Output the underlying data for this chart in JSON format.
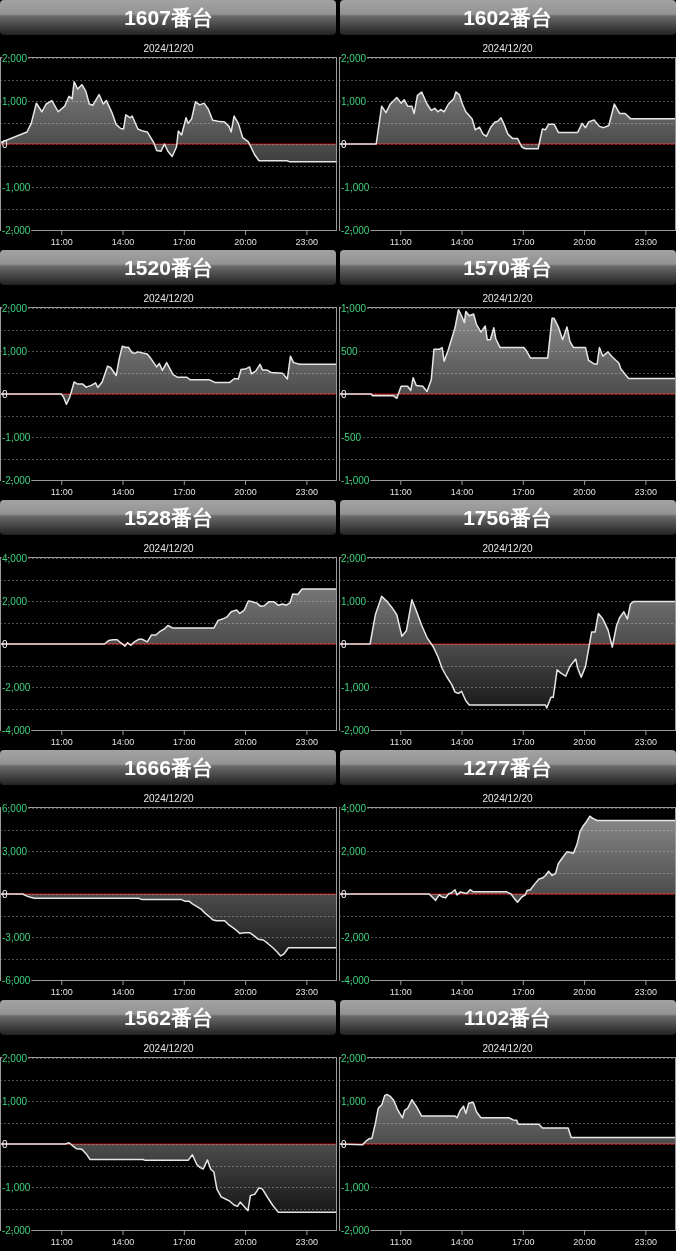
{
  "chart_data": [
    {
      "type": "area",
      "title": "1607番台",
      "subtitle": "2024/12/20",
      "color": "#e6e6e6",
      "xlim": [
        8,
        24.5
      ],
      "xticks": [
        {
          "value": 11,
          "label": "11:00"
        },
        {
          "value": 14,
          "label": "14:00"
        },
        {
          "value": 17,
          "label": "17:00"
        },
        {
          "value": 20,
          "label": "20:00"
        },
        {
          "value": 23,
          "label": "23:00"
        }
      ],
      "ylim": [
        -2000,
        2000
      ],
      "yticks": [
        {
          "value": -2000,
          "label": "-2,000"
        },
        {
          "value": -1500,
          "label": null
        },
        {
          "value": -1000,
          "label": "-1,000"
        },
        {
          "value": -500,
          "label": null
        },
        0,
        {
          "value": 500,
          "label": null
        },
        {
          "value": 1000,
          "label": "1,000"
        },
        {
          "value": 1500,
          "label": null
        },
        {
          "value": 2000,
          "label": "2,000"
        }
      ],
      "grid": "y",
      "ref_lines": [
        {
          "axis": "y",
          "value": 0,
          "color": "#cc0000"
        }
      ],
      "x": [
        8,
        9.32,
        9.53,
        9.78,
        10.05,
        10.26,
        10.54,
        10.85,
        11.17,
        11.38,
        11.53,
        11.63,
        11.8,
        12.01,
        12.2,
        12.37,
        12.54,
        12.85,
        13.06,
        13.21,
        13.48,
        13.69,
        13.91,
        14.05,
        14.16,
        14.37,
        14.47,
        14.75,
        15,
        15.21,
        15.53,
        15.67,
        15.88,
        16.05,
        16.22,
        16.43,
        16.64,
        16.73,
        16.89,
        17.11,
        17.21,
        17.38,
        17.57,
        17.78,
        17.99,
        18.2,
        18.41,
        18.68,
        19,
        19.21,
        19.32,
        19.46,
        19.67,
        19.88,
        20.16,
        20.47,
        20.68,
        22.05,
        22.16,
        24.5
      ],
      "values": [
        30,
        280,
        480,
        950,
        750,
        930,
        1010,
        750,
        880,
        1110,
        1050,
        1450,
        1280,
        1380,
        1230,
        930,
        900,
        1150,
        930,
        1010,
        730,
        450,
        360,
        350,
        680,
        610,
        650,
        350,
        300,
        280,
        30,
        -150,
        -170,
        0,
        -170,
        -290,
        -70,
        300,
        210,
        610,
        480,
        580,
        980,
        910,
        950,
        810,
        550,
        530,
        510,
        410,
        280,
        650,
        480,
        150,
        50,
        -250,
        -390,
        -390,
        -410,
        -410
      ]
    },
    {
      "type": "area",
      "title": "1602番台",
      "subtitle": "2024/12/20",
      "color": "#e6e6e6",
      "xlim": [
        8,
        24.5
      ],
      "xticks": [
        {
          "value": 11,
          "label": "11:00"
        },
        {
          "value": 14,
          "label": "14:00"
        },
        {
          "value": 17,
          "label": "17:00"
        },
        {
          "value": 20,
          "label": "20:00"
        },
        {
          "value": 23,
          "label": "23:00"
        }
      ],
      "ylim": [
        -2000,
        2000
      ],
      "yticks": [
        {
          "value": -2000,
          "label": "-2,000"
        },
        {
          "value": -1500,
          "label": null
        },
        {
          "value": -1000,
          "label": "-1,000"
        },
        {
          "value": -500,
          "label": null
        },
        0,
        {
          "value": 500,
          "label": null
        },
        {
          "value": 1000,
          "label": "1,000"
        },
        {
          "value": 1500,
          "label": null
        },
        {
          "value": 2000,
          "label": "2,000"
        }
      ],
      "grid": "y",
      "ref_lines": [
        {
          "axis": "y",
          "value": 0,
          "color": "#cc0000"
        }
      ],
      "x": [
        8,
        9.82,
        10.09,
        10.3,
        10.51,
        10.83,
        11.04,
        11.19,
        11.36,
        11.57,
        11.68,
        11.84,
        12.05,
        12.31,
        12.52,
        12.69,
        12.84,
        12.98,
        13.15,
        13.36,
        13.53,
        13.62,
        13.72,
        13.89,
        14.04,
        14.21,
        14.52,
        14.67,
        14.88,
        15.05,
        15.22,
        15.43,
        15.64,
        15.78,
        15.93,
        16.06,
        16.27,
        16.49,
        16.74,
        16.95,
        17.12,
        17.75,
        17.96,
        18.11,
        18.26,
        18.53,
        18.74,
        19.69,
        19.9,
        20.07,
        20.22,
        20.49,
        20.75,
        20.96,
        21.21,
        21.48,
        21.74,
        22.01,
        22.27,
        24.5
      ],
      "values": [
        0,
        0,
        880,
        730,
        930,
        1080,
        950,
        1030,
        880,
        880,
        710,
        1130,
        1210,
        930,
        780,
        830,
        750,
        800,
        750,
        930,
        1010,
        1050,
        1210,
        1150,
        930,
        750,
        580,
        330,
        390,
        230,
        180,
        390,
        510,
        530,
        610,
        480,
        230,
        130,
        130,
        -70,
        -110,
        -110,
        350,
        330,
        460,
        460,
        270,
        270,
        480,
        380,
        510,
        560,
        410,
        380,
        430,
        930,
        710,
        710,
        590,
        590
      ]
    },
    {
      "type": "area",
      "title": "1520番台",
      "subtitle": "2024/12/20",
      "color": "#e6e6e6",
      "xlim": [
        8,
        24.5
      ],
      "xticks": [
        {
          "value": 11,
          "label": "11:00"
        },
        {
          "value": 14,
          "label": "14:00"
        },
        {
          "value": 17,
          "label": "17:00"
        },
        {
          "value": 20,
          "label": "20:00"
        },
        {
          "value": 23,
          "label": "23:00"
        }
      ],
      "ylim": [
        -2000,
        2000
      ],
      "yticks": [
        {
          "value": -2000,
          "label": "-2,000"
        },
        {
          "value": -1500,
          "label": null
        },
        {
          "value": -1000,
          "label": "-1,000"
        },
        {
          "value": -500,
          "label": null
        },
        0,
        {
          "value": 500,
          "label": null
        },
        {
          "value": 1000,
          "label": "1,000"
        },
        {
          "value": 1500,
          "label": null
        },
        {
          "value": 2000,
          "label": "2,000"
        }
      ],
      "grid": "y",
      "ref_lines": [
        {
          "axis": "y",
          "value": 0,
          "color": "#cc0000"
        }
      ],
      "x": [
        8,
        11,
        11.11,
        11.25,
        11.42,
        11.63,
        11.8,
        12.05,
        12.22,
        12.47,
        12.68,
        12.79,
        13,
        13.27,
        13.42,
        13.69,
        13.84,
        13.99,
        14.16,
        14.28,
        14.47,
        14.62,
        14.75,
        15.21,
        15.38,
        15.67,
        15.8,
        15.95,
        16.16,
        16.47,
        16.68,
        17.15,
        17.32,
        18.26,
        18.52,
        19.25,
        19.48,
        19.67,
        19.8,
        20.01,
        20.22,
        20.31,
        20.52,
        20.73,
        20.85,
        21.06,
        21.27,
        21.84,
        22.07,
        22.22,
        22.37,
        22.68,
        24.5
      ],
      "values": [
        0,
        0,
        -70,
        -240,
        -70,
        280,
        230,
        230,
        160,
        200,
        260,
        150,
        280,
        650,
        610,
        430,
        830,
        1110,
        1080,
        1090,
        960,
        950,
        980,
        930,
        830,
        630,
        710,
        550,
        730,
        450,
        390,
        390,
        330,
        330,
        270,
        270,
        360,
        350,
        570,
        580,
        630,
        470,
        530,
        690,
        560,
        560,
        500,
        480,
        350,
        880,
        730,
        690,
        690
      ]
    },
    {
      "type": "area",
      "title": "1570番台",
      "subtitle": "2024/12/20",
      "color": "#e6e6e6",
      "xlim": [
        8,
        24.5
      ],
      "xticks": [
        {
          "value": 11,
          "label": "11:00"
        },
        {
          "value": 14,
          "label": "14:00"
        },
        {
          "value": 17,
          "label": "17:00"
        },
        {
          "value": 20,
          "label": "20:00"
        },
        {
          "value": 23,
          "label": "23:00"
        }
      ],
      "ylim": [
        -1000,
        1000
      ],
      "yticks": [
        {
          "value": -1000,
          "label": "-1,000"
        },
        {
          "value": -750,
          "label": null
        },
        -500,
        {
          "value": -250,
          "label": null
        },
        0,
        {
          "value": 250,
          "label": null
        },
        500,
        {
          "value": 750,
          "label": null
        },
        {
          "value": 1000,
          "label": "1,000"
        }
      ],
      "grid": "y",
      "ref_lines": [
        {
          "axis": "y",
          "value": 0,
          "color": "#cc0000"
        }
      ],
      "x": [
        8,
        9.58,
        9.63,
        10.66,
        10.83,
        11.04,
        11.36,
        11.51,
        11.63,
        11.78,
        12.1,
        12.31,
        12.52,
        12.65,
        12.9,
        13.05,
        13.15,
        13.36,
        13.68,
        13.85,
        14,
        14.14,
        14.21,
        14.38,
        14.59,
        14.73,
        14.95,
        15.16,
        15.26,
        15.41,
        15.58,
        15.68,
        15.89,
        17.05,
        17.16,
        17.37,
        18.22,
        18.43,
        18.53,
        18.74,
        18.95,
        19.16,
        19.31,
        19.48,
        20.07,
        20.22,
        20.49,
        20.64,
        20.75,
        20.92,
        21.17,
        21.38,
        21.7,
        21.8,
        22.18,
        24.5
      ],
      "values": [
        0,
        0,
        -20,
        -20,
        -50,
        90,
        90,
        40,
        190,
        100,
        90,
        30,
        170,
        520,
        520,
        540,
        380,
        520,
        770,
        980,
        910,
        830,
        960,
        910,
        930,
        810,
        720,
        790,
        630,
        630,
        770,
        640,
        540,
        540,
        510,
        420,
        420,
        880,
        880,
        780,
        630,
        780,
        610,
        540,
        540,
        390,
        350,
        350,
        540,
        440,
        490,
        430,
        360,
        290,
        180,
        180
      ]
    },
    {
      "type": "area",
      "title": "1528番台",
      "subtitle": "2024/12/20",
      "color": "#e6e6e6",
      "xlim": [
        8,
        24.5
      ],
      "xticks": [
        {
          "value": 11,
          "label": "11:00"
        },
        {
          "value": 14,
          "label": "14:00"
        },
        {
          "value": 17,
          "label": "17:00"
        },
        {
          "value": 20,
          "label": "20:00"
        },
        {
          "value": 23,
          "label": "23:00"
        }
      ],
      "ylim": [
        -4000,
        4000
      ],
      "yticks": [
        {
          "value": -4000,
          "label": "-4,000"
        },
        {
          "value": -3000,
          "label": null
        },
        {
          "value": -2000,
          "label": "-2,000"
        },
        {
          "value": -1000,
          "label": null
        },
        0,
        {
          "value": 1000,
          "label": null
        },
        {
          "value": 2000,
          "label": "2,000"
        },
        {
          "value": 3000,
          "label": null
        },
        {
          "value": 4000,
          "label": "4,000"
        }
      ],
      "grid": "y",
      "ref_lines": [
        {
          "axis": "y",
          "value": 0,
          "color": "#cc0000"
        }
      ],
      "x": [
        8,
        13.11,
        13.32,
        13.53,
        13.74,
        13.91,
        14.12,
        14.24,
        14.41,
        14.58,
        14.79,
        14.96,
        15.21,
        15.42,
        15.63,
        15.8,
        16.05,
        16.22,
        16.47,
        18.47,
        18.68,
        18.89,
        19.11,
        19.32,
        19.59,
        19.74,
        19.95,
        20.16,
        20.37,
        20.58,
        20.75,
        20.94,
        21.15,
        21.42,
        21.63,
        21.84,
        22.01,
        22.2,
        22.33,
        22.58,
        22.79,
        24.5
      ],
      "values": [
        0,
        0,
        160,
        200,
        200,
        60,
        -100,
        60,
        -60,
        100,
        220,
        220,
        100,
        420,
        420,
        560,
        700,
        860,
        740,
        740,
        1100,
        1160,
        1260,
        1500,
        1580,
        1420,
        1560,
        2000,
        1960,
        1900,
        1760,
        1780,
        1960,
        1960,
        1800,
        1860,
        1800,
        1920,
        2320,
        2300,
        2560,
        2560
      ]
    },
    {
      "type": "area",
      "title": "1756番台",
      "subtitle": "2024/12/20",
      "color": "#e6e6e6",
      "xlim": [
        8,
        24.5
      ],
      "xticks": [
        {
          "value": 11,
          "label": "11:00"
        },
        {
          "value": 14,
          "label": "14:00"
        },
        {
          "value": 17,
          "label": "17:00"
        },
        {
          "value": 20,
          "label": "20:00"
        },
        {
          "value": 23,
          "label": "23:00"
        }
      ],
      "ylim": [
        -2000,
        2000
      ],
      "yticks": [
        {
          "value": -2000,
          "label": "-2,000"
        },
        {
          "value": -1500,
          "label": null
        },
        {
          "value": -1000,
          "label": "-1,000"
        },
        {
          "value": -500,
          "label": null
        },
        0,
        {
          "value": 500,
          "label": null
        },
        {
          "value": 1000,
          "label": "1,000"
        },
        {
          "value": 1500,
          "label": null
        },
        {
          "value": 2000,
          "label": "2,000"
        }
      ],
      "grid": "y",
      "ref_lines": [
        {
          "axis": "y",
          "value": 0,
          "color": "#cc0000"
        }
      ],
      "x": [
        8,
        9.52,
        9.78,
        10.09,
        10.37,
        10.62,
        10.83,
        11.08,
        11.3,
        11.57,
        11.78,
        12.05,
        12.31,
        12.62,
        12.84,
        13.05,
        13.26,
        13.53,
        13.68,
        13.85,
        14,
        14.21,
        14.38,
        18.11,
        18.17,
        18.38,
        18.49,
        18.68,
        18.85,
        19.1,
        19.31,
        19.59,
        19.69,
        19.86,
        20.07,
        20.37,
        20.54,
        20.7,
        20.92,
        21.17,
        21.38,
        21.59,
        21.74,
        21.95,
        22.12,
        22.27,
        22.43,
        24.5
      ],
      "values": [
        0,
        0,
        680,
        1110,
        980,
        830,
        680,
        180,
        310,
        1030,
        780,
        430,
        150,
        -70,
        -290,
        -570,
        -750,
        -950,
        -1120,
        -1150,
        -1100,
        -1320,
        -1420,
        -1420,
        -1490,
        -1240,
        -1240,
        -600,
        -670,
        -750,
        -520,
        -350,
        -570,
        -770,
        -520,
        280,
        280,
        710,
        580,
        330,
        -70,
        430,
        610,
        750,
        580,
        930,
        990,
        990
      ]
    },
    {
      "type": "area",
      "title": "1666番台",
      "subtitle": "2024/12/20",
      "color": "#e6e6e6",
      "xlim": [
        8,
        24.5
      ],
      "xticks": [
        {
          "value": 11,
          "label": "11:00"
        },
        {
          "value": 14,
          "label": "14:00"
        },
        {
          "value": 17,
          "label": "17:00"
        },
        {
          "value": 20,
          "label": "20:00"
        },
        {
          "value": 23,
          "label": "23:00"
        }
      ],
      "ylim": [
        -6000,
        6000
      ],
      "yticks": [
        {
          "value": -6000,
          "label": "-6,000"
        },
        {
          "value": -4500,
          "label": null
        },
        {
          "value": -3000,
          "label": "-3,000"
        },
        {
          "value": -1500,
          "label": null
        },
        0,
        {
          "value": 1500,
          "label": null
        },
        {
          "value": 3000,
          "label": "3,000"
        },
        {
          "value": 4500,
          "label": null
        },
        {
          "value": 6000,
          "label": "6,000"
        }
      ],
      "grid": "y",
      "ref_lines": [
        {
          "axis": "y",
          "value": 0,
          "color": "#cc0000"
        }
      ],
      "x": [
        8,
        9.11,
        9.32,
        9.53,
        9.69,
        14.79,
        14.96,
        16.89,
        17.06,
        17.27,
        17.42,
        17.63,
        17.84,
        18.05,
        18.26,
        18.41,
        18.58,
        19,
        19.21,
        19.42,
        19.59,
        19.74,
        19.95,
        20.22,
        20.43,
        20.64,
        20.89,
        21.11,
        21.36,
        21.57,
        21.74,
        21.91,
        22.12,
        22.26,
        24.5
      ],
      "values": [
        0,
        0,
        -150,
        -240,
        -300,
        -300,
        -390,
        -390,
        -510,
        -510,
        -690,
        -870,
        -1050,
        -1350,
        -1590,
        -1800,
        -1860,
        -1860,
        -2160,
        -2370,
        -2550,
        -2760,
        -2700,
        -2700,
        -2910,
        -3150,
        -3210,
        -3450,
        -3750,
        -4050,
        -4320,
        -4170,
        -3750,
        -3750,
        -3750
      ]
    },
    {
      "type": "area",
      "title": "1277番台",
      "subtitle": "2024/12/20",
      "color": "#e6e6e6",
      "xlim": [
        8,
        24.5
      ],
      "xticks": [
        {
          "value": 11,
          "label": "11:00"
        },
        {
          "value": 14,
          "label": "14:00"
        },
        {
          "value": 17,
          "label": "17:00"
        },
        {
          "value": 20,
          "label": "20:00"
        },
        {
          "value": 23,
          "label": "23:00"
        }
      ],
      "ylim": [
        -4000,
        4000
      ],
      "yticks": [
        {
          "value": -4000,
          "label": "-4,000"
        },
        {
          "value": -3000,
          "label": null
        },
        {
          "value": -2000,
          "label": "-2,000"
        },
        {
          "value": -1000,
          "label": null
        },
        0,
        {
          "value": 1000,
          "label": null
        },
        {
          "value": 2000,
          "label": "2,000"
        },
        {
          "value": 3000,
          "label": null
        },
        {
          "value": 4000,
          "label": "4,000"
        }
      ],
      "grid": "y",
      "ref_lines": [
        {
          "axis": "y",
          "value": 0,
          "color": "#cc0000"
        }
      ],
      "x": [
        8,
        12.41,
        12.56,
        12.73,
        12.9,
        13.05,
        13.22,
        13.36,
        13.51,
        13.68,
        13.78,
        13.95,
        14.1,
        14.25,
        14.42,
        14.57,
        16.21,
        16.42,
        16.53,
        16.74,
        16.95,
        17.12,
        17.21,
        17.37,
        17.58,
        17.79,
        17.96,
        18.11,
        18.26,
        18.43,
        18.6,
        18.74,
        18.95,
        19.16,
        19.38,
        19.48,
        19.65,
        19.8,
        19.95,
        20.07,
        20.28,
        20.43,
        20.64,
        24.5
      ],
      "values": [
        0,
        0,
        -140,
        -300,
        -40,
        -140,
        -180,
        0,
        60,
        200,
        -40,
        100,
        60,
        20,
        200,
        100,
        100,
        0,
        -140,
        -380,
        -140,
        -40,
        160,
        200,
        460,
        700,
        740,
        860,
        1060,
        860,
        960,
        1420,
        1700,
        1960,
        1920,
        1900,
        2300,
        2900,
        3160,
        3300,
        3620,
        3520,
        3420,
        3420
      ]
    },
    {
      "type": "area",
      "title": "1562番台",
      "subtitle": "2024/12/20",
      "color": "#e6e6e6",
      "xlim": [
        8,
        24.5
      ],
      "xticks": [
        {
          "value": 11,
          "label": "11:00"
        },
        {
          "value": 14,
          "label": "14:00"
        },
        {
          "value": 17,
          "label": "17:00"
        },
        {
          "value": 20,
          "label": "20:00"
        },
        {
          "value": 23,
          "label": "23:00"
        }
      ],
      "ylim": [
        -2000,
        2000
      ],
      "yticks": [
        {
          "value": -2000,
          "label": "-2,000"
        },
        {
          "value": -1500,
          "label": null
        },
        {
          "value": -1000,
          "label": "-1,000"
        },
        {
          "value": -500,
          "label": null
        },
        0,
        {
          "value": 500,
          "label": null
        },
        {
          "value": 1000,
          "label": "1,000"
        },
        {
          "value": 1500,
          "label": null
        },
        {
          "value": 2000,
          "label": "2,000"
        }
      ],
      "grid": "y",
      "ref_lines": [
        {
          "axis": "y",
          "value": 0,
          "color": "#cc0000"
        }
      ],
      "x": [
        8,
        11.21,
        11.38,
        11.53,
        11.74,
        12.01,
        12.22,
        12.41,
        15,
        15.11,
        17.21,
        17.42,
        17.63,
        17.8,
        17.95,
        18.16,
        18.31,
        18.47,
        18.62,
        18.83,
        19.04,
        19.25,
        19.46,
        19.63,
        19.76,
        19.91,
        20.14,
        20.26,
        20.47,
        20.68,
        20.85,
        21.11,
        21.36,
        21.63,
        24.5
      ],
      "values": [
        0,
        0,
        30,
        -30,
        -110,
        -120,
        -230,
        -360,
        -360,
        -380,
        -380,
        -250,
        -470,
        -550,
        -580,
        -370,
        -580,
        -650,
        -1050,
        -1230,
        -1280,
        -1330,
        -1420,
        -1450,
        -1350,
        -1430,
        -1550,
        -1200,
        -1170,
        -1020,
        -1050,
        -1250,
        -1430,
        -1590,
        -1590
      ]
    },
    {
      "type": "area",
      "title": "1102番台",
      "subtitle": "2024/12/20",
      "color": "#e6e6e6",
      "xlim": [
        8,
        24.5
      ],
      "xticks": [
        {
          "value": 11,
          "label": "11:00"
        },
        {
          "value": 14,
          "label": "14:00"
        },
        {
          "value": 17,
          "label": "17:00"
        },
        {
          "value": 20,
          "label": "20:00"
        },
        {
          "value": 23,
          "label": "23:00"
        }
      ],
      "ylim": [
        -2000,
        2000
      ],
      "yticks": [
        {
          "value": -2000,
          "label": "-2,000"
        },
        {
          "value": -1500,
          "label": null
        },
        {
          "value": -1000,
          "label": "-1,000"
        },
        {
          "value": -500,
          "label": null
        },
        0,
        {
          "value": 500,
          "label": null
        },
        {
          "value": 1000,
          "label": "1,000"
        },
        {
          "value": 1500,
          "label": null
        },
        {
          "value": 2000,
          "label": "2,000"
        }
      ],
      "grid": "y",
      "ref_lines": [
        {
          "axis": "y",
          "value": 0,
          "color": "#cc0000"
        }
      ],
      "x": [
        8,
        9.14,
        9.35,
        9.5,
        9.61,
        9.78,
        9.92,
        10.09,
        10.24,
        10.37,
        10.51,
        10.68,
        10.89,
        11.11,
        11.21,
        11.36,
        11.57,
        11.78,
        12.05,
        13.68,
        13.78,
        13.93,
        14.1,
        14.21,
        14.35,
        14.57,
        14.73,
        14.95,
        16.32,
        16.53,
        16.7,
        16.78,
        17.79,
        17.96,
        19.22,
        19.37,
        24.5
      ],
      "values": [
        0,
        -20,
        80,
        130,
        130,
        480,
        830,
        910,
        1130,
        1150,
        1110,
        1010,
        780,
        610,
        780,
        830,
        1030,
        880,
        650,
        650,
        610,
        780,
        880,
        710,
        950,
        970,
        750,
        610,
        610,
        560,
        550,
        460,
        460,
        370,
        370,
        150,
        150
      ]
    }
  ]
}
